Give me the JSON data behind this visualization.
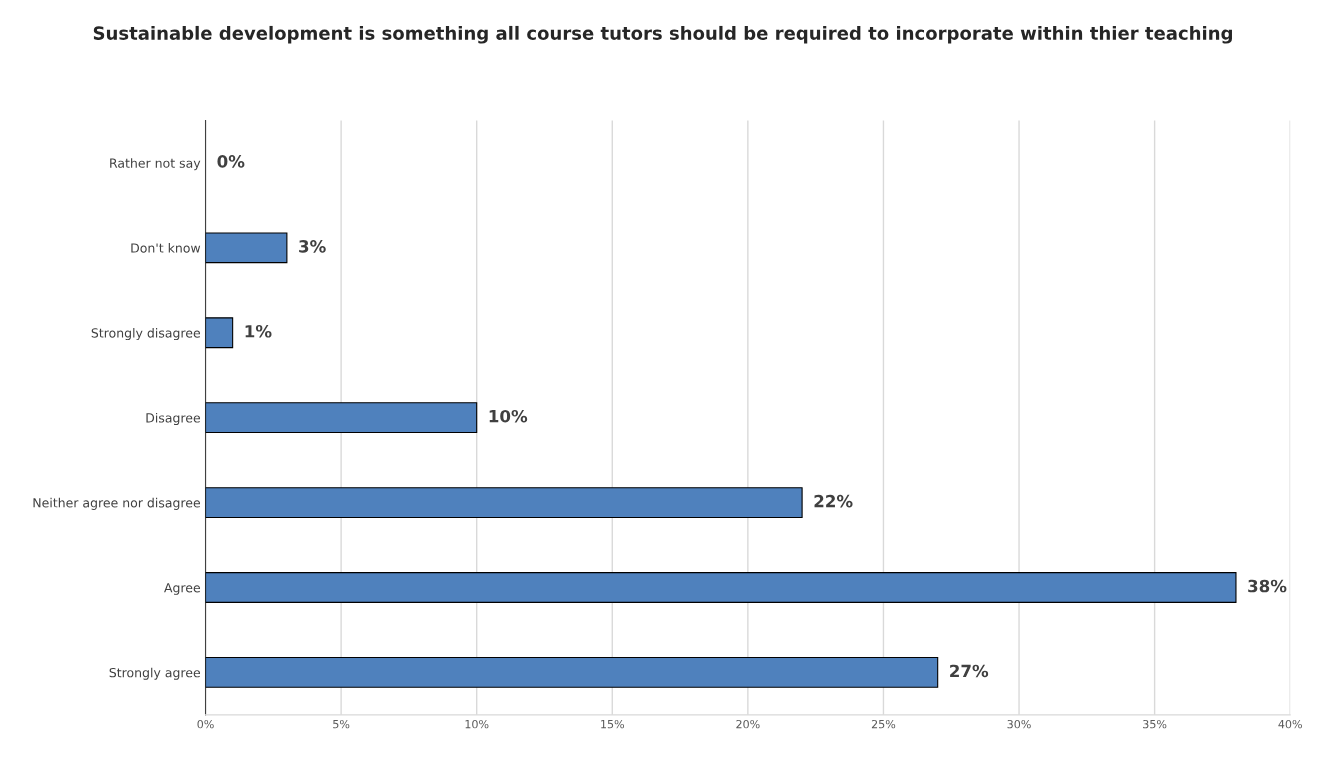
{
  "chart_data": {
    "type": "bar",
    "orientation": "horizontal",
    "title": "Sustainable development is something all course tutors should be required to incorporate within thier teaching",
    "categories": [
      "Rather not say",
      "Don't know",
      "Strongly disagree",
      "Disagree",
      "Neither agree nor disagree",
      "Agree",
      "Strongly agree"
    ],
    "values": [
      0,
      3,
      1,
      10,
      22,
      38,
      27
    ],
    "value_labels": [
      "0%",
      "3%",
      "1%",
      "10%",
      "22%",
      "38%",
      "27%"
    ],
    "color": "#4f81bd",
    "xlim": [
      0,
      40
    ],
    "xticks": [
      {
        "value": 0,
        "label": "0%"
      },
      {
        "value": 5,
        "label": "5%"
      },
      {
        "value": 10,
        "label": "10%"
      },
      {
        "value": 15,
        "label": "15%"
      },
      {
        "value": 20,
        "label": "20%"
      },
      {
        "value": 25,
        "label": "25%"
      },
      {
        "value": 30,
        "label": "30%"
      },
      {
        "value": 35,
        "label": "35%"
      },
      {
        "value": 40,
        "label": "40%"
      }
    ],
    "grid": "x",
    "legend": false
  }
}
